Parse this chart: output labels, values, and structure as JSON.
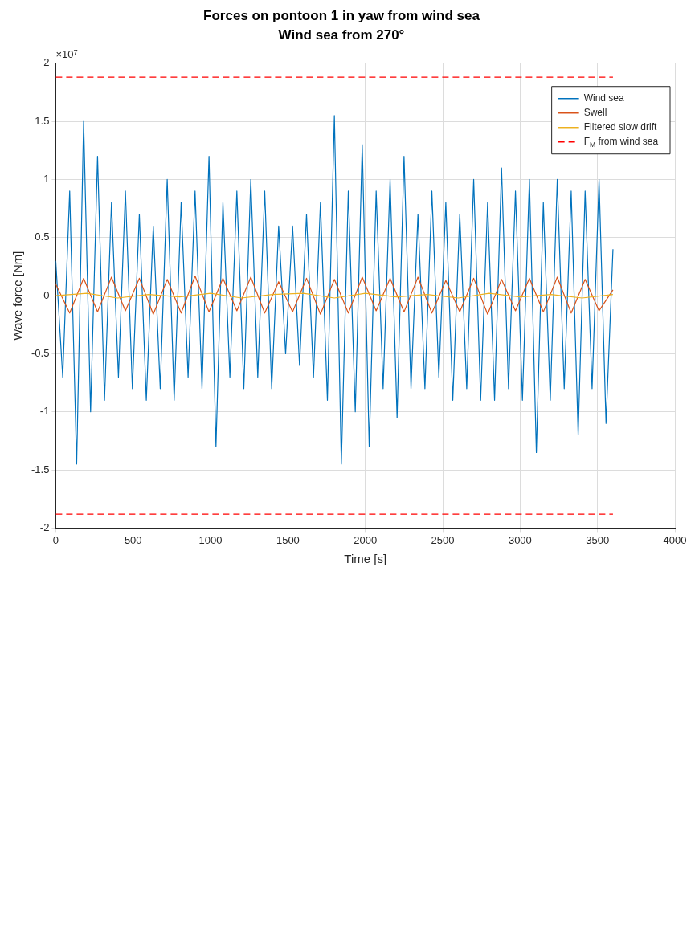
{
  "chart_data": {
    "type": "line",
    "title": "Forces on pontoon 1 in yaw from wind sea",
    "subtitle": "Wind sea from 270°",
    "xlabel": "Time [s]",
    "ylabel": "Wave force [Nm]",
    "annotations": [
      "×10$^{7}$"
    ],
    "xlim": [
      0,
      4000
    ],
    "xticks": [
      0,
      500,
      1000,
      1500,
      2000,
      2500,
      3000,
      3500,
      4000
    ],
    "ylim": [
      -2,
      2
    ],
    "yticks": [
      -2,
      -1.5,
      -1,
      -0.5,
      0,
      0.5,
      1,
      1.5,
      2
    ],
    "grid": true,
    "legend": "top right",
    "marker": "none",
    "series": [
      {
        "name": "Wind sea",
        "color": "#0072bd",
        "x": [
          0,
          45,
          90,
          135,
          180,
          225,
          270,
          315,
          360,
          405,
          450,
          495,
          540,
          585,
          630,
          675,
          720,
          765,
          810,
          855,
          900,
          945,
          990,
          1035,
          1080,
          1125,
          1170,
          1215,
          1260,
          1305,
          1350,
          1395,
          1440,
          1485,
          1530,
          1575,
          1620,
          1665,
          1710,
          1755,
          1800,
          1845,
          1890,
          1935,
          1980,
          2025,
          2070,
          2115,
          2160,
          2205,
          2250,
          2295,
          2340,
          2385,
          2430,
          2475,
          2520,
          2565,
          2610,
          2655,
          2700,
          2745,
          2790,
          2835,
          2880,
          2925,
          2970,
          3015,
          3060,
          3105,
          3150,
          3195,
          3240,
          3285,
          3330,
          3375,
          3420,
          3465,
          3510,
          3555,
          3600
        ],
        "values": [
          0.3,
          -0.7,
          0.9,
          -1.45,
          1.5,
          -1,
          1.2,
          -0.9,
          0.8,
          -0.7,
          0.9,
          -0.8,
          0.7,
          -0.9,
          0.6,
          -0.8,
          1,
          -0.9,
          0.8,
          -0.7,
          0.9,
          -0.8,
          1.2,
          -1.3,
          0.8,
          -0.7,
          0.9,
          -0.8,
          1,
          -0.7,
          0.9,
          -0.8,
          0.6,
          -0.5,
          0.6,
          -0.6,
          0.7,
          -0.7,
          0.8,
          -0.9,
          1.55,
          -1.45,
          0.9,
          -1,
          1.3,
          -1.3,
          0.9,
          -0.8,
          1,
          -1.05,
          1.2,
          -0.8,
          0.7,
          -0.8,
          0.9,
          -0.7,
          0.8,
          -0.9,
          0.7,
          -0.8,
          1,
          -0.9,
          0.8,
          -0.9,
          1.1,
          -0.8,
          0.9,
          -0.9,
          1,
          -1.35,
          0.8,
          -0.9,
          1,
          -0.8,
          0.9,
          -1.2,
          0.9,
          -0.8,
          1,
          -1.1,
          0.4
        ]
      },
      {
        "name": "Swell",
        "color": "#d95319",
        "x": [
          0,
          90,
          180,
          270,
          360,
          450,
          540,
          630,
          720,
          810,
          900,
          990,
          1080,
          1170,
          1260,
          1350,
          1440,
          1530,
          1620,
          1710,
          1800,
          1890,
          1980,
          2070,
          2160,
          2250,
          2340,
          2430,
          2520,
          2610,
          2700,
          2790,
          2880,
          2970,
          3060,
          3150,
          3240,
          3330,
          3420,
          3510,
          3600
        ],
        "values": [
          0.1,
          -0.15,
          0.15,
          -0.14,
          0.16,
          -0.13,
          0.15,
          -0.16,
          0.14,
          -0.15,
          0.17,
          -0.14,
          0.15,
          -0.13,
          0.16,
          -0.15,
          0.12,
          -0.14,
          0.15,
          -0.16,
          0.14,
          -0.15,
          0.16,
          -0.13,
          0.15,
          -0.14,
          0.16,
          -0.15,
          0.13,
          -0.14,
          0.15,
          -0.16,
          0.14,
          -0.13,
          0.15,
          -0.14,
          0.16,
          -0.15,
          0.14,
          -0.13,
          0.05
        ]
      },
      {
        "name": "Filtered slow drift",
        "color": "#edb120",
        "x": [
          0,
          200,
          400,
          600,
          800,
          1000,
          1200,
          1400,
          1600,
          1800,
          2000,
          2200,
          2400,
          2600,
          2800,
          3000,
          3200,
          3400,
          3600
        ],
        "values": [
          0,
          0.02,
          -0.02,
          0.01,
          -0.01,
          0.02,
          -0.02,
          0.01,
          0.02,
          -0.02,
          0.02,
          -0.01,
          0.01,
          -0.02,
          0.02,
          -0.01,
          0.01,
          -0.02,
          0.01
        ]
      },
      {
        "name": "F$_{M}$ from wind sea",
        "color": "#ff0000",
        "line_style": "dashed",
        "x": [
          0,
          3600
        ],
        "values": [
          1.88,
          1.88
        ]
      },
      {
        "color": "#ff0000",
        "line_style": "dashed",
        "x": [
          0,
          3600
        ],
        "values": [
          -1.88,
          -1.88
        ]
      }
    ]
  }
}
